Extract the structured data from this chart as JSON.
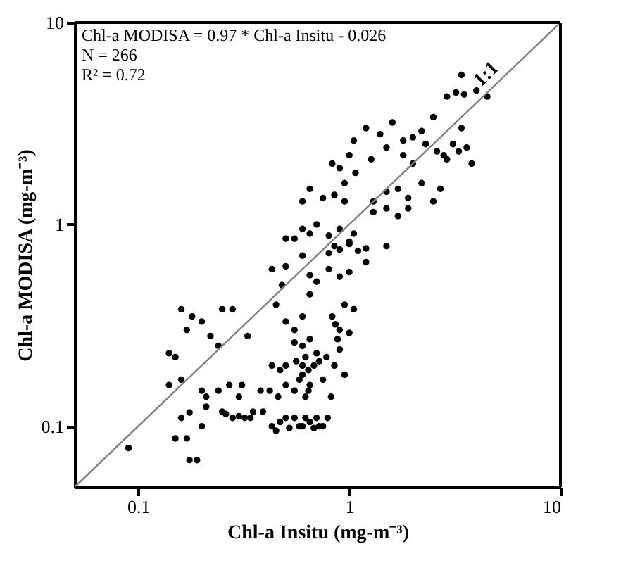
{
  "chart_data": {
    "type": "scatter",
    "xlabel": "Chl-a Insitu (mg-m⁻³)",
    "ylabel": "Chl-a MODISA (mg-m⁻³)",
    "xlim": [
      0.05,
      10
    ],
    "ylim": [
      0.05,
      10
    ],
    "xticks": [
      0.1,
      1,
      10
    ],
    "yticks": [
      0.1,
      1,
      10
    ],
    "log": "xy",
    "grid": false,
    "legend": false,
    "annotations": [
      "Chl-a MODISA = 0.97 * Chl-a Insitu - 0.026",
      "N = 266",
      "R² = 0.72"
    ],
    "series": [
      {
        "color": "#000000",
        "marker": "circle",
        "x": [
          0.09,
          0.15,
          0.17,
          0.175,
          0.19,
          0.2,
          0.175,
          0.21,
          0.25,
          0.35,
          0.39,
          0.43,
          0.47,
          0.5,
          0.55,
          0.6,
          0.65,
          0.7,
          0.75,
          0.79,
          0.45,
          0.52,
          0.58,
          0.62,
          0.68,
          0.72,
          0.16,
          0.26,
          0.28,
          0.3,
          0.32,
          0.34,
          0.14,
          0.16,
          0.2,
          0.21,
          0.24,
          0.27,
          0.3,
          0.31,
          0.38,
          0.42,
          0.46,
          0.5,
          0.55,
          0.6,
          0.65,
          0.75,
          0.82,
          0.43,
          0.47,
          0.5,
          0.56,
          0.58,
          0.6,
          0.62,
          0.64,
          0.68,
          0.72,
          0.78,
          0.85,
          0.9,
          0.95,
          0.55,
          0.6,
          0.65,
          0.7,
          0.62,
          0.64,
          0.15,
          0.17,
          0.18,
          0.2,
          0.22,
          0.24,
          0.25,
          0.28,
          0.33,
          0.16,
          0.14,
          0.83,
          0.86,
          0.9,
          0.88,
          1.0,
          1.05,
          0.95,
          0.55,
          0.5,
          0.45,
          0.48,
          0.6,
          0.65,
          0.7,
          0.43,
          0.5,
          0.65,
          0.8,
          0.9,
          1.0,
          1.2,
          0.5,
          0.6,
          0.8,
          0.85,
          0.9,
          1.0,
          1.1,
          1.2,
          1.5,
          0.55,
          0.6,
          0.65,
          0.7,
          0.8,
          0.9,
          1.0,
          1.05,
          0.6,
          0.65,
          0.75,
          0.85,
          0.95,
          0.83,
          0.9,
          1.0,
          1.07,
          0.95,
          1.3,
          1.5,
          1.7,
          1.9,
          1.3,
          1.5,
          1.7,
          1.9,
          2.2,
          2.5,
          2.7,
          1.27,
          1.5,
          1.8,
          2.0,
          2.3,
          2.6,
          2.9,
          3.3,
          3.6,
          1.05,
          1.2,
          1.4,
          1.6,
          1.8,
          2.0,
          2.2,
          2.5,
          2.8,
          3.1,
          3.4,
          3.8,
          2.9,
          3.2,
          3.5,
          4.0,
          4.5,
          3.4
        ],
        "values": [
          0.078,
          0.087,
          0.087,
          0.068,
          0.068,
          0.1,
          0.117,
          0.125,
          0.118,
          0.118,
          0.118,
          0.1,
          0.105,
          0.11,
          0.11,
          0.1,
          0.105,
          0.11,
          0.1,
          0.11,
          0.095,
          0.098,
          0.1,
          0.11,
          0.098,
          0.1,
          0.11,
          0.115,
          0.11,
          0.112,
          0.11,
          0.11,
          0.16,
          0.17,
          0.15,
          0.14,
          0.15,
          0.16,
          0.14,
          0.16,
          0.15,
          0.15,
          0.14,
          0.16,
          0.15,
          0.18,
          0.16,
          0.17,
          0.14,
          0.2,
          0.19,
          0.2,
          0.21,
          0.17,
          0.2,
          0.22,
          0.19,
          0.2,
          0.21,
          0.22,
          0.2,
          0.24,
          0.18,
          0.26,
          0.25,
          0.27,
          0.23,
          0.14,
          0.15,
          0.22,
          0.3,
          0.35,
          0.33,
          0.28,
          0.25,
          0.38,
          0.38,
          0.28,
          0.38,
          0.23,
          0.35,
          0.32,
          0.3,
          0.27,
          0.29,
          0.38,
          0.4,
          0.3,
          0.33,
          0.4,
          0.5,
          0.35,
          0.45,
          0.52,
          0.6,
          0.62,
          0.56,
          0.6,
          0.55,
          0.58,
          0.65,
          0.85,
          0.7,
          0.72,
          0.78,
          0.75,
          0.8,
          0.74,
          0.76,
          0.78,
          0.85,
          0.95,
          0.9,
          1.0,
          0.88,
          0.95,
          0.82,
          0.9,
          1.3,
          1.5,
          1.35,
          1.4,
          1.3,
          2.0,
          1.9,
          2.2,
          1.8,
          1.6,
          1.15,
          1.2,
          1.1,
          1.2,
          1.3,
          1.45,
          1.5,
          1.35,
          1.6,
          1.3,
          1.5,
          2.1,
          2.4,
          2.2,
          2.0,
          2.5,
          2.3,
          2.1,
          2.3,
          2.4,
          2.6,
          3.0,
          2.8,
          3.2,
          2.6,
          2.7,
          2.9,
          3.4,
          2.2,
          2.5,
          3.0,
          2.0,
          4.3,
          4.5,
          4.4,
          4.6,
          4.3,
          5.5
        ]
      },
      {
        "type": "line",
        "name": "1:1",
        "color": "#808080",
        "line_style": "solid",
        "x": [
          0.05,
          10
        ],
        "values": [
          0.05,
          10
        ]
      }
    ]
  }
}
